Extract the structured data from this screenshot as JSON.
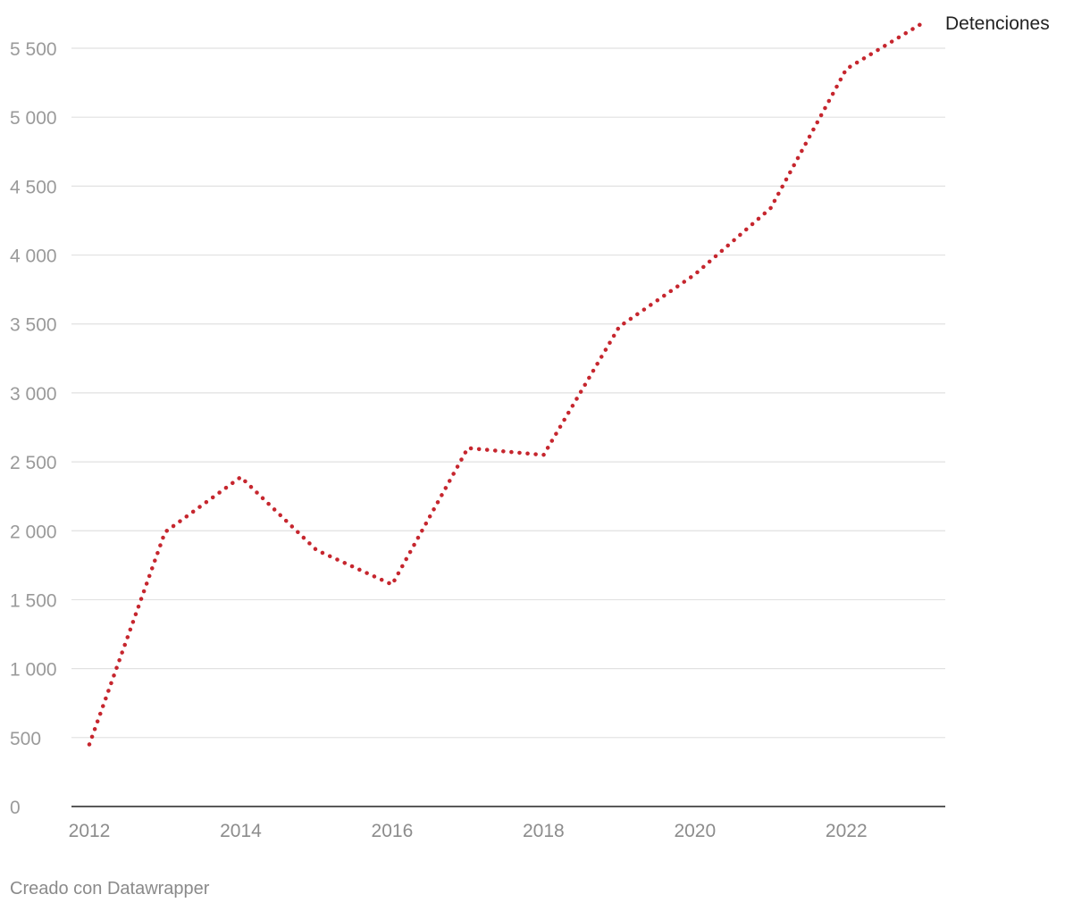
{
  "chart_data": {
    "type": "line",
    "title": "",
    "xlabel": "",
    "ylabel": "",
    "x": [
      2012,
      2013,
      2014,
      2015,
      2016,
      2017,
      2018,
      2019,
      2020,
      2021,
      2022,
      2023
    ],
    "series": [
      {
        "name": "Detenciones",
        "color": "#c6262e",
        "style": "dotted",
        "values": [
          450,
          1990,
          2390,
          1860,
          1610,
          2600,
          2550,
          3480,
          3860,
          4340,
          5350,
          5680
        ]
      }
    ],
    "xlim": [
      2012,
      2023
    ],
    "ylim": [
      0,
      5500
    ],
    "x_ticks": [
      "2012",
      "2014",
      "2016",
      "2018",
      "2020",
      "2022"
    ],
    "y_ticks": [
      "0",
      "500",
      "1 000",
      "1 500",
      "2 000",
      "2 500",
      "3 000",
      "3 500",
      "4 000",
      "4 500",
      "5 000",
      "5 500"
    ],
    "grid": true,
    "legend": "end-of-line label"
  },
  "credit": "Creado con Datawrapper"
}
